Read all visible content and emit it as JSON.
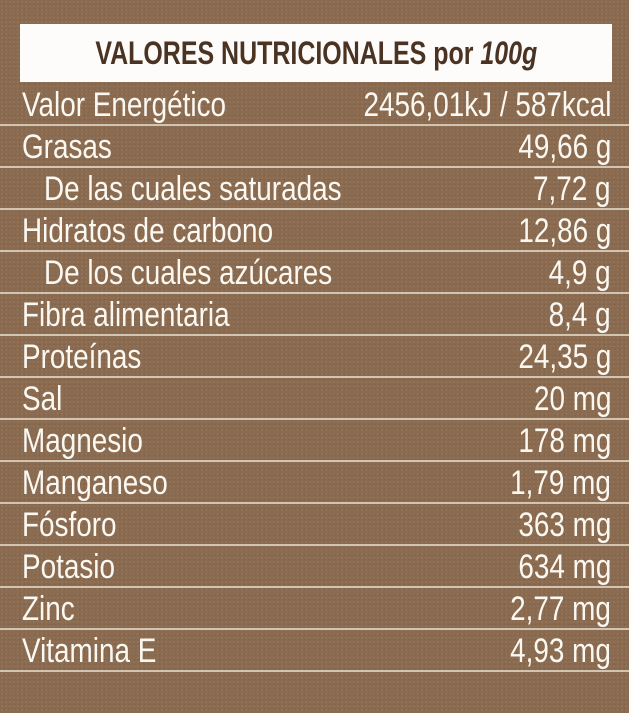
{
  "header": {
    "title": "VALORES NUTRICIONALES por",
    "title_italic": "100g"
  },
  "rows": [
    {
      "label": "Valor Energético",
      "value": "2456,01kJ / 587kcal",
      "sub": false
    },
    {
      "label": "Grasas",
      "value": "49,66 g",
      "sub": false
    },
    {
      "label": "De las cuales saturadas",
      "value": "7,72 g",
      "sub": true
    },
    {
      "label": "Hidratos de carbono",
      "value": "12,86 g",
      "sub": false
    },
    {
      "label": "De los cuales azúcares",
      "value": "4,9 g",
      "sub": true
    },
    {
      "label": "Fibra alimentaria",
      "value": "8,4 g",
      "sub": false
    },
    {
      "label": "Proteínas",
      "value": "24,35 g",
      "sub": false
    },
    {
      "label": "Sal",
      "value": "20 mg",
      "sub": false
    },
    {
      "label": "Magnesio",
      "value": "178 mg",
      "sub": false
    },
    {
      "label": "Manganeso",
      "value": "1,79 mg",
      "sub": false
    },
    {
      "label": "Fósforo",
      "value": "363 mg",
      "sub": false
    },
    {
      "label": "Potasio",
      "value": "634 mg",
      "sub": false
    },
    {
      "label": "Zinc",
      "value": "2,77 mg",
      "sub": false
    },
    {
      "label": "Vitamina E",
      "value": "4,93 mg",
      "sub": false
    }
  ],
  "colors": {
    "background": "#8b6b50",
    "header_bg": "#fdfcfa",
    "header_text": "#4a3322",
    "text": "#fbf8f2"
  }
}
